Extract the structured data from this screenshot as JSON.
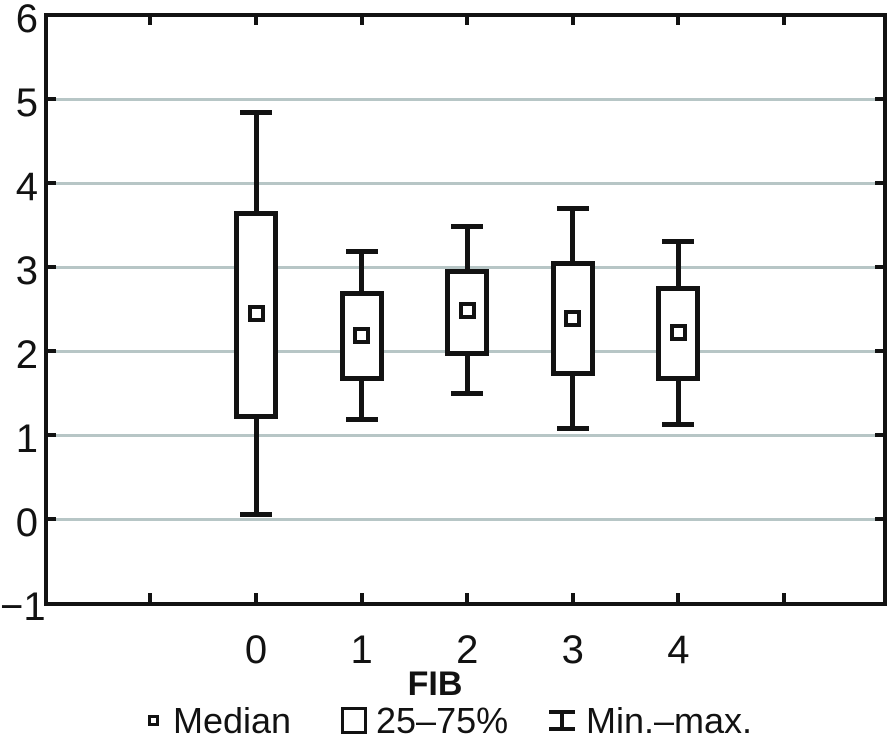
{
  "chart_data": {
    "type": "box",
    "title": "",
    "xlabel": "FIB",
    "ylabel": "",
    "categories": [
      "0",
      "1",
      "2",
      "3",
      "4"
    ],
    "ylim": [
      -1,
      6
    ],
    "grid": "horizontal",
    "y_axis": {
      "ticks": [
        {
          "v": 6,
          "label": "6"
        },
        {
          "v": 5,
          "label": "5"
        },
        {
          "v": 4,
          "label": "4"
        },
        {
          "v": 3,
          "label": "3"
        },
        {
          "v": 2,
          "label": "2"
        },
        {
          "v": 1,
          "label": "1"
        },
        {
          "v": 0,
          "label": "0"
        },
        {
          "v": -1,
          "label": "−1"
        }
      ],
      "gridline_values": [
        5,
        4,
        3,
        2,
        1,
        0
      ]
    },
    "boxes": [
      {
        "category": "0",
        "min": 0.05,
        "q1": 1.21,
        "median": 2.45,
        "q3": 3.64,
        "max": 4.84
      },
      {
        "category": "1",
        "min": 1.19,
        "q1": 1.67,
        "median": 2.18,
        "q3": 2.69,
        "max": 3.18
      },
      {
        "category": "2",
        "min": 1.49,
        "q1": 1.96,
        "median": 2.48,
        "q3": 2.95,
        "max": 3.48
      },
      {
        "category": "3",
        "min": 1.08,
        "q1": 1.73,
        "median": 2.39,
        "q3": 3.05,
        "max": 3.7
      },
      {
        "category": "4",
        "min": 1.12,
        "q1": 1.67,
        "median": 2.22,
        "q3": 2.75,
        "max": 3.3
      }
    ],
    "legend": [
      {
        "symbol": "median-square",
        "label": "Median"
      },
      {
        "symbol": "box",
        "label": "25–75%"
      },
      {
        "symbol": "whisker",
        "label": "Min.–max."
      }
    ],
    "legend_position": "bottom",
    "colors": {
      "stroke": "#121212",
      "grid": "#b7c6c6",
      "background": "#ffffff"
    }
  }
}
